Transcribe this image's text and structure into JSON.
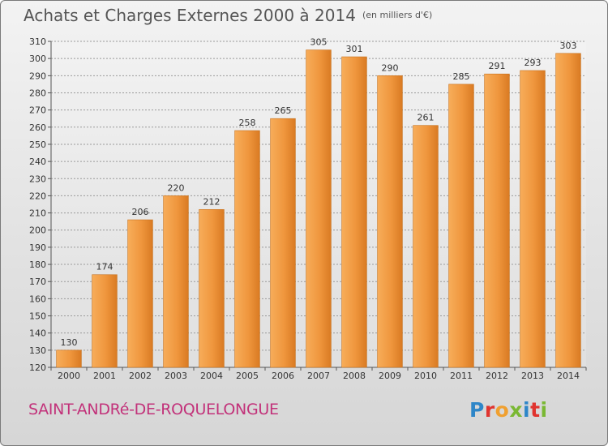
{
  "title": "Achats et Charges Externes 2000 à 2014",
  "unit": "(en milliers d'€)",
  "commune": "SAINT-ANDRé-DE-ROQUELONGUE",
  "brand": {
    "text": "Proxiti",
    "letter_colors": [
      "#2e86c8",
      "#e0342f",
      "#f0a030",
      "#7ab833",
      "#2e86c8",
      "#e0342f",
      "#7ab833"
    ]
  },
  "colors": {
    "bar": "#ef963d",
    "bar_light": "#f7ad5a",
    "bar_dark": "#d97a22",
    "grid": "#9a9a9a"
  },
  "chart_data": {
    "type": "bar",
    "title": "Achats et Charges Externes 2000 à 2014",
    "categories": [
      "2000",
      "2001",
      "2002",
      "2003",
      "2004",
      "2005",
      "2006",
      "2007",
      "2008",
      "2009",
      "2010",
      "2011",
      "2012",
      "2013",
      "2014"
    ],
    "values": [
      130,
      174,
      206,
      220,
      212,
      258,
      265,
      305,
      301,
      290,
      261,
      285,
      291,
      293,
      303
    ],
    "ylim": [
      120,
      310
    ],
    "yticks": [
      120,
      130,
      140,
      150,
      160,
      170,
      180,
      190,
      200,
      210,
      220,
      230,
      240,
      250,
      260,
      270,
      280,
      290,
      300,
      310
    ],
    "grid": true,
    "legend": "none"
  }
}
